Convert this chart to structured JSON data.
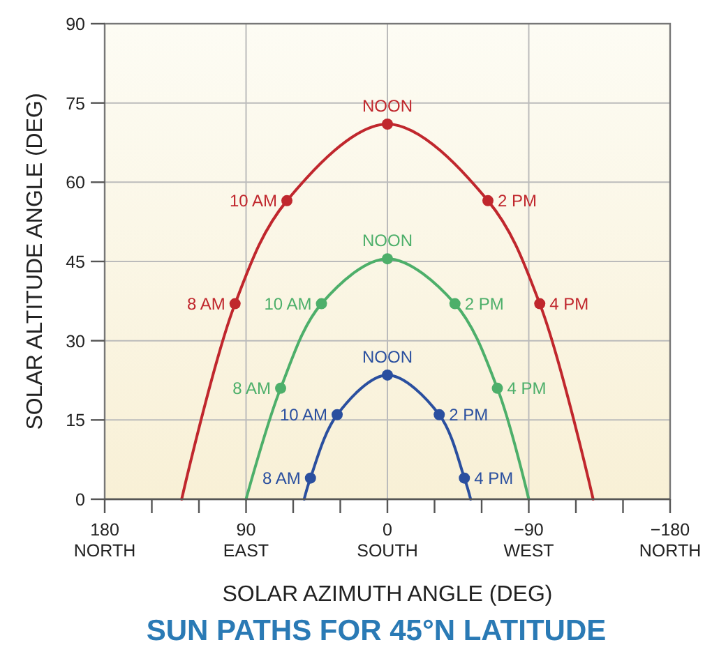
{
  "chart_data": {
    "type": "line",
    "title": "SUN PATHS FOR 45°N LATITUDE",
    "xlabel": "SOLAR AZIMUTH ANGLE (DEG)",
    "ylabel": "SOLAR ALTITUDE ANGLE (DEG)",
    "xlim": [
      180,
      -180
    ],
    "xticks": [
      {
        "value": 180,
        "label": "180\nNORTH"
      },
      {
        "value": 150,
        "label": null
      },
      {
        "value": 120,
        "label": null
      },
      {
        "value": 90,
        "label": "90\nEAST"
      },
      {
        "value": 60,
        "label": null
      },
      {
        "value": 30,
        "label": null
      },
      {
        "value": 0,
        "label": "0\nSOUTH"
      },
      {
        "value": -30,
        "label": null
      },
      {
        "value": -60,
        "label": null
      },
      {
        "value": -90,
        "label": "−90\nWEST"
      },
      {
        "value": -120,
        "label": null
      },
      {
        "value": -150,
        "label": null
      },
      {
        "value": -180,
        "label": "−180\nNORTH"
      }
    ],
    "ylim": [
      0,
      90
    ],
    "yticks": [
      0,
      15,
      30,
      45,
      60,
      75,
      90
    ],
    "grid": true,
    "marker": "none",
    "line_style": "solid",
    "series": [
      {
        "color": "#c0272d",
        "x": [
          131,
          97,
          64,
          0,
          -64,
          -97,
          -131
        ],
        "values": [
          0,
          37,
          56.5,
          71,
          56.5,
          37,
          0
        ]
      },
      {
        "color": "#4daf6a",
        "x": [
          90,
          68,
          42,
          0,
          -43,
          -70,
          -90
        ],
        "values": [
          0,
          21,
          37,
          45.5,
          37,
          21,
          0
        ]
      },
      {
        "color": "#2a4f9f",
        "x": [
          53,
          49,
          32,
          0,
          -33,
          -49,
          -53
        ],
        "values": [
          0,
          4,
          16,
          23.5,
          16,
          4,
          0
        ]
      },
      {
        "type": "scatter",
        "marker": "circle",
        "color": "#c0272d",
        "x": [
          97,
          64,
          0,
          -64,
          -97
        ],
        "values": [
          37,
          56.5,
          71,
          56.5,
          37
        ]
      },
      {
        "type": "scatter",
        "marker": "circle",
        "color": "#4daf6a",
        "x": [
          68,
          42,
          0,
          -43,
          -70
        ],
        "values": [
          21,
          37,
          45.5,
          37,
          21
        ]
      },
      {
        "type": "scatter",
        "marker": "circle",
        "color": "#2a4f9f",
        "x": [
          49,
          32,
          0,
          -33,
          -49
        ],
        "values": [
          4,
          16,
          23.5,
          16,
          4
        ]
      }
    ],
    "annotations": [
      {
        "text": "8 AM",
        "x": 97,
        "y": 37
      },
      {
        "text": "10 AM",
        "x": 64,
        "y": 56.5
      },
      {
        "text": "NOON",
        "x": 0,
        "y": 71
      },
      {
        "text": "2 PM",
        "x": -64,
        "y": 56.5
      },
      {
        "text": "4 PM",
        "x": -97,
        "y": 37
      },
      {
        "text": "8 AM",
        "x": 68,
        "y": 21
      },
      {
        "text": "10 AM",
        "x": 42,
        "y": 37
      },
      {
        "text": "NOON",
        "x": 0,
        "y": 45.5
      },
      {
        "text": "2 PM",
        "x": -43,
        "y": 37
      },
      {
        "text": "4 PM",
        "x": -70,
        "y": 21
      },
      {
        "text": "8 AM",
        "x": 49,
        "y": 4
      },
      {
        "text": "10 AM",
        "x": 32,
        "y": 16
      },
      {
        "text": "NOON",
        "x": 0,
        "y": 23.5
      },
      {
        "text": "2 PM",
        "x": -33,
        "y": 16
      },
      {
        "text": "4 PM",
        "x": -49,
        "y": 4
      }
    ]
  }
}
